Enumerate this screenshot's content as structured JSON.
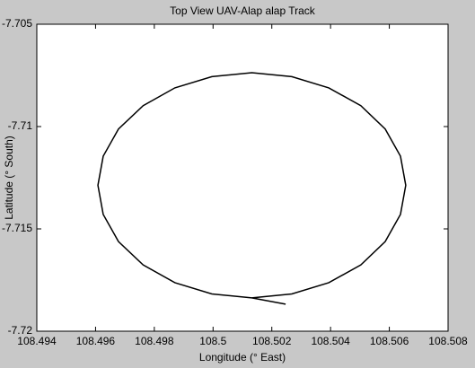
{
  "chart_data": {
    "type": "line",
    "title": "Top View UAV-Alap alap Track",
    "x_label": "Longitude (° East)",
    "y_label": "Latitude (° South)",
    "xlim": [
      108.494,
      108.508
    ],
    "ylim": [
      -7.72,
      -7.705
    ],
    "xticks": [
      108.494,
      108.496,
      108.498,
      108.5,
      108.502,
      108.504,
      108.506,
      108.508
    ],
    "yticks": [
      -7.72,
      -7.715,
      -7.71,
      -7.705
    ],
    "series": [
      {
        "color": "#000000",
        "x": [
          108.50247,
          108.50132,
          108.49996,
          108.4987,
          108.49762,
          108.49678,
          108.49626,
          108.49608,
          108.49626,
          108.49678,
          108.49762,
          108.4987,
          108.49996,
          108.50132,
          108.50268,
          108.50394,
          108.50503,
          108.50586,
          108.50638,
          108.50656,
          108.50638,
          108.50586,
          108.50503,
          108.50394,
          108.50268,
          108.50132
        ],
        "values": [
          -7.71868,
          -7.71837,
          -7.71818,
          -7.71763,
          -7.71676,
          -7.71562,
          -7.71429,
          -7.71287,
          -7.71145,
          -7.71012,
          -7.70898,
          -7.70811,
          -7.70756,
          -7.70737,
          -7.70756,
          -7.70811,
          -7.70898,
          -7.71012,
          -7.71145,
          -7.71287,
          -7.71429,
          -7.71562,
          -7.71676,
          -7.71763,
          -7.71818,
          -7.71837
        ]
      }
    ]
  }
}
